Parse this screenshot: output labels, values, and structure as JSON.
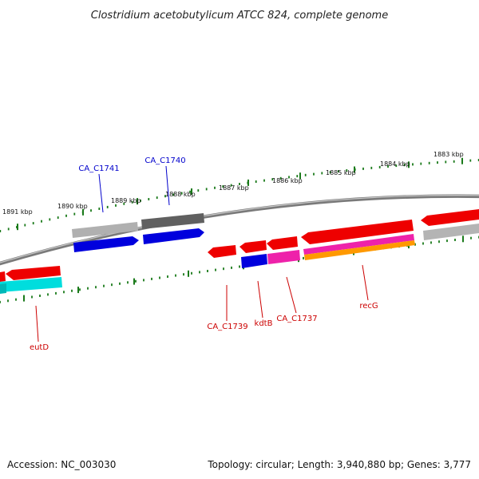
{
  "title": "Clostridium acetobutylicum ATCC 824, complete genome",
  "footer": {
    "accession": "Accession: NC_003030",
    "topology": "Topology: circular; Length: 3,940,880 bp; Genes: 3,777"
  },
  "ticks": [
    {
      "label": "1891 kbp"
    },
    {
      "label": "1890 kbp"
    },
    {
      "label": "1889 kbp"
    },
    {
      "label": "1888 kbp"
    },
    {
      "label": "1887 kbp"
    },
    {
      "label": "1886 kbp"
    },
    {
      "label": "1885 kbp"
    },
    {
      "label": "1884 kbp"
    },
    {
      "label": "1883 kbp"
    }
  ],
  "gene_labels": [
    {
      "text": "CA_C1741",
      "color": "#0000cc"
    },
    {
      "text": "CA_C1740",
      "color": "#0000cc"
    },
    {
      "text": "CA_C1739",
      "color": "#cc0000"
    },
    {
      "text": "kdtB",
      "color": "#cc0000"
    },
    {
      "text": "CA_C1737",
      "color": "#cc0000"
    },
    {
      "text": "recG",
      "color": "#cc0000"
    },
    {
      "text": "eutD",
      "color": "#cc0000"
    }
  ],
  "colors": {
    "strand_forward": "#0000dd",
    "strand_reverse": "#ee0000",
    "cog_gray_light": "#b0b0b0",
    "cog_gray_dark": "#606060",
    "cog_cyan": "#00dddd",
    "cog_magenta": "#ee22aa",
    "cog_orange": "#ff9900",
    "backbone": "#808080",
    "tick": "#1a7a1a"
  }
}
